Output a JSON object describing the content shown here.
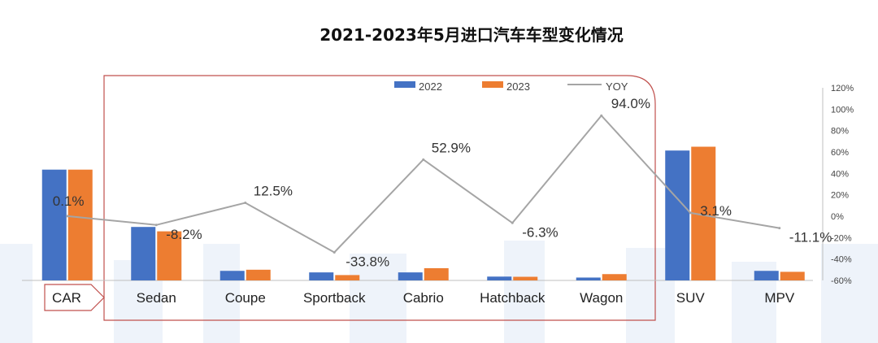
{
  "chart_data": {
    "type": "bar",
    "title": "2021-2023年5月进口汽车车型变化情况",
    "categories": [
      "CAR",
      "Sedan",
      "Coupe",
      "Sportback",
      "Cabrio",
      "Hatchback",
      "Wagon",
      "SUV",
      "MPV"
    ],
    "series": [
      {
        "name": "2022",
        "type": "bar",
        "axis": "left",
        "values": [
          58,
          28,
          5.0,
          4.2,
          4.2,
          2.0,
          1.5,
          68,
          5.0
        ]
      },
      {
        "name": "2023",
        "type": "bar",
        "axis": "left",
        "values": [
          58,
          25.7,
          5.6,
          2.8,
          6.4,
          1.9,
          3.3,
          70,
          4.5
        ]
      },
      {
        "name": "YOY",
        "type": "line",
        "axis": "right",
        "values": [
          0.1,
          -8.2,
          12.5,
          -33.8,
          52.9,
          -6.3,
          94.0,
          3.1,
          -11.1
        ]
      }
    ],
    "yoy_labels": [
      "0.1%",
      "-8.2%",
      "12.5%",
      "-33.8%",
      "52.9%",
      "-6.3%",
      "94.0%",
      "3.1%",
      "-11.1%"
    ],
    "y2_ticks": [
      "120%",
      "100%",
      "80%",
      "60%",
      "40%",
      "20%",
      "0%",
      "-20%",
      "-40%",
      "-60%"
    ],
    "y2lim": [
      -60,
      120
    ],
    "legend": [
      "2022",
      "2023",
      "YOY"
    ],
    "legend_position": "top",
    "highlight_group": [
      "Sedan",
      "Coupe",
      "Sportback",
      "Cabrio",
      "Hatchback",
      "Wagon"
    ],
    "colors": {
      "s2022": "#4472C4",
      "s2023": "#ED7D31",
      "yoy": "#A5A5A5",
      "highlight": "#C0504D"
    }
  }
}
